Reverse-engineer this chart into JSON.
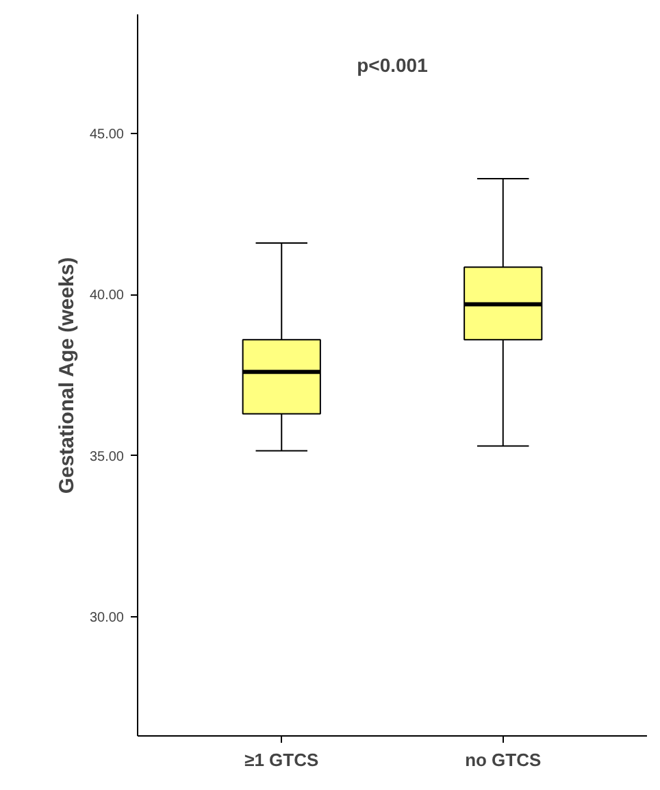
{
  "chart_data": {
    "type": "box",
    "ylabel": "Gestational Age (weeks)",
    "categories": [
      "≥1 GTCS",
      "no GTCS"
    ],
    "boxes": [
      {
        "low": 35.15,
        "q1": 36.3,
        "median": 37.6,
        "q3": 38.6,
        "high": 41.6
      },
      {
        "low": 35.3,
        "q1": 38.6,
        "median": 39.7,
        "q3": 40.85,
        "high": 43.6
      }
    ],
    "color": "#ffff80",
    "ylim": [
      26.3,
      48.7
    ],
    "yticks": [
      {
        "value": 30,
        "label": "30.00"
      },
      {
        "value": 35,
        "label": "35.00"
      },
      {
        "value": 40,
        "label": "40.00"
      },
      {
        "value": 45,
        "label": "45.00"
      }
    ],
    "annotations": [
      "p<0.001"
    ],
    "grid": false
  }
}
